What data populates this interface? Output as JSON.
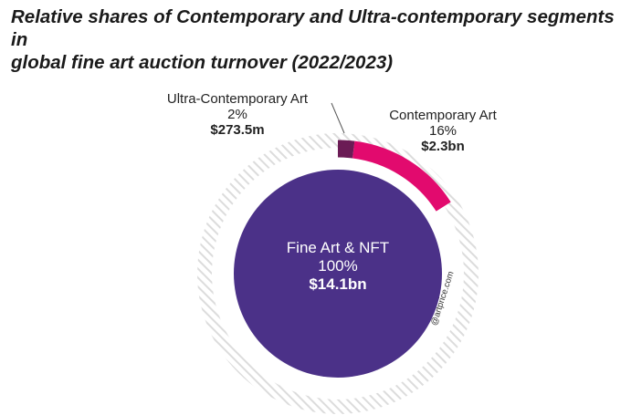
{
  "title": {
    "line1": "Relative shares of Contemporary and Ultra-contemporary segments in",
    "line2": "global fine art auction turnover (2022/2023)"
  },
  "watermark": "@artprice.com",
  "colors": {
    "center": "#4b3188",
    "contemporary": "#e20a6e",
    "ultra": "#6b1b55",
    "hatch": "#dcdcdc"
  },
  "chart_data": {
    "type": "pie",
    "title": "Relative shares of Contemporary and Ultra-contemporary segments in global fine art auction turnover (2022/2023)",
    "segments": [
      {
        "name": "Fine Art & NFT",
        "percent": "100%",
        "share": 100,
        "value": "$14.1bn"
      },
      {
        "name": "Contemporary Art",
        "percent": "16%",
        "share": 16,
        "value": "$2.3bn"
      },
      {
        "name": "Ultra-Contemporary Art",
        "percent": "2%",
        "share": 2,
        "value": "$273.5m"
      }
    ]
  }
}
